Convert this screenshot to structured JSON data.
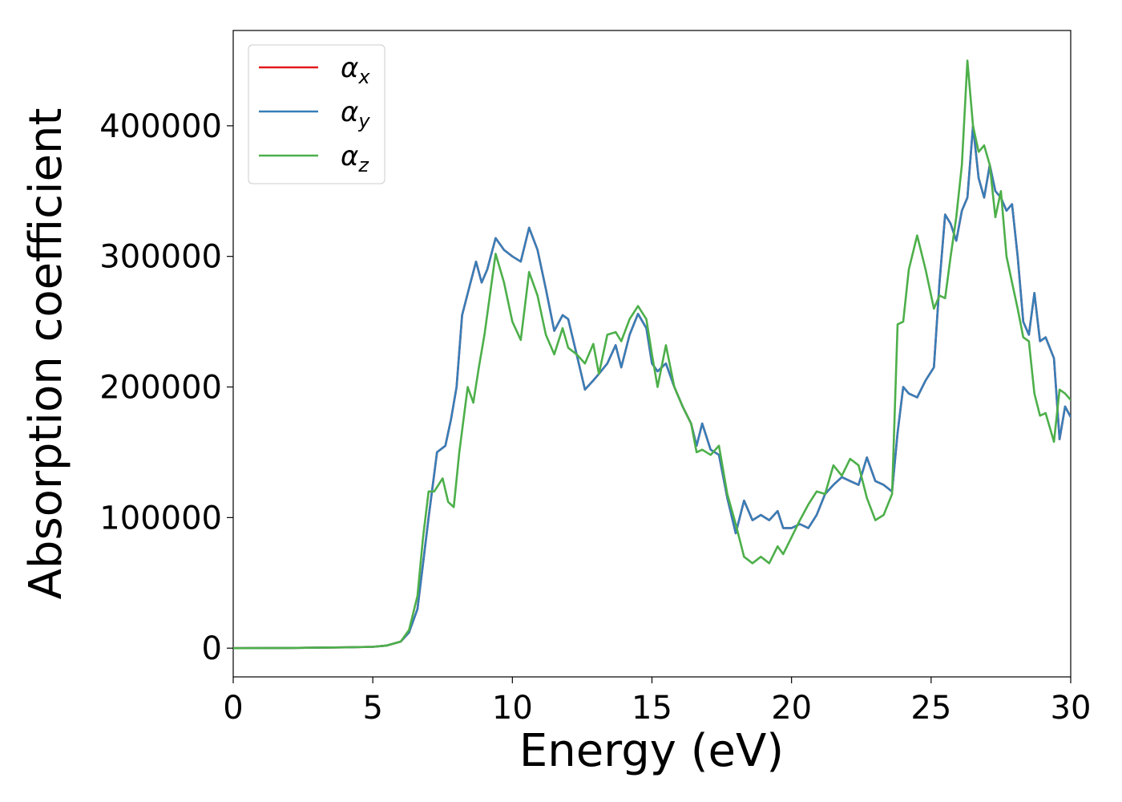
{
  "chart_data": {
    "type": "line",
    "xlabel": "Energy (eV)",
    "ylabel": "Absorption coefficient",
    "xlim": [
      0,
      30
    ],
    "ylim": [
      -22000,
      473000
    ],
    "xticks": [
      "0",
      "5",
      "10",
      "15",
      "20",
      "25",
      "30"
    ],
    "yticks": [
      "0",
      "100000",
      "200000",
      "300000",
      "400000"
    ],
    "grid": false,
    "legend_position": "top-left",
    "series": [
      {
        "name": "αx",
        "symbol": "α",
        "subscript": "x",
        "color": "#e41a1c",
        "x": [
          0,
          2,
          4,
          5,
          5.5,
          6,
          6.3,
          6.6,
          6.8,
          7.0,
          7.3,
          7.6,
          7.8,
          8.0,
          8.2,
          8.5,
          8.7,
          8.9,
          9.1,
          9.4,
          9.7,
          10.0,
          10.3,
          10.6,
          10.9,
          11.2,
          11.5,
          11.8,
          12.0,
          12.3,
          12.6,
          12.9,
          13.1,
          13.4,
          13.7,
          13.9,
          14.2,
          14.5,
          14.8,
          15.0,
          15.2,
          15.5,
          15.8,
          16.1,
          16.4,
          16.6,
          16.8,
          17.1,
          17.4,
          17.7,
          18.0,
          18.3,
          18.6,
          18.9,
          19.2,
          19.5,
          19.7,
          20.0,
          20.3,
          20.6,
          20.9,
          21.2,
          21.5,
          21.8,
          22.1,
          22.4,
          22.7,
          23.0,
          23.3,
          23.6,
          23.8,
          24.0,
          24.2,
          24.5,
          24.8,
          25.1,
          25.3,
          25.5,
          25.7,
          25.9,
          26.1,
          26.3,
          26.5,
          26.7,
          26.9,
          27.1,
          27.3,
          27.5,
          27.7,
          27.9,
          28.1,
          28.3,
          28.5,
          28.7,
          28.9,
          29.1,
          29.4,
          29.6,
          29.8,
          30.0
        ],
        "values": [
          0,
          200,
          600,
          1000,
          2000,
          5000,
          12000,
          30000,
          65000,
          100000,
          150000,
          155000,
          175000,
          200000,
          255000,
          280000,
          296000,
          280000,
          290000,
          314000,
          305000,
          300000,
          296000,
          322000,
          305000,
          275000,
          243000,
          255000,
          252000,
          225000,
          198000,
          205000,
          210000,
          218000,
          232000,
          215000,
          240000,
          256000,
          245000,
          218000,
          212000,
          218000,
          200000,
          185000,
          172000,
          155000,
          172000,
          152000,
          148000,
          115000,
          88000,
          113000,
          98000,
          102000,
          98000,
          105000,
          92000,
          92000,
          95000,
          92000,
          102000,
          118000,
          125000,
          131000,
          128000,
          125000,
          146000,
          128000,
          125000,
          120000,
          165000,
          200000,
          195000,
          192000,
          205000,
          215000,
          280000,
          332000,
          325000,
          312000,
          335000,
          345000,
          400000,
          360000,
          345000,
          370000,
          350000,
          345000,
          335000,
          340000,
          300000,
          250000,
          240000,
          272000,
          235000,
          238000,
          222000,
          160000,
          185000,
          177000
        ]
      },
      {
        "name": "αy",
        "symbol": "α",
        "subscript": "y",
        "color": "#377eb8",
        "x": [
          0,
          2,
          4,
          5,
          5.5,
          6,
          6.3,
          6.6,
          6.8,
          7.0,
          7.3,
          7.6,
          7.8,
          8.0,
          8.2,
          8.5,
          8.7,
          8.9,
          9.1,
          9.4,
          9.7,
          10.0,
          10.3,
          10.6,
          10.9,
          11.2,
          11.5,
          11.8,
          12.0,
          12.3,
          12.6,
          12.9,
          13.1,
          13.4,
          13.7,
          13.9,
          14.2,
          14.5,
          14.8,
          15.0,
          15.2,
          15.5,
          15.8,
          16.1,
          16.4,
          16.6,
          16.8,
          17.1,
          17.4,
          17.7,
          18.0,
          18.3,
          18.6,
          18.9,
          19.2,
          19.5,
          19.7,
          20.0,
          20.3,
          20.6,
          20.9,
          21.2,
          21.5,
          21.8,
          22.1,
          22.4,
          22.7,
          23.0,
          23.3,
          23.6,
          23.8,
          24.0,
          24.2,
          24.5,
          24.8,
          25.1,
          25.3,
          25.5,
          25.7,
          25.9,
          26.1,
          26.3,
          26.5,
          26.7,
          26.9,
          27.1,
          27.3,
          27.5,
          27.7,
          27.9,
          28.1,
          28.3,
          28.5,
          28.7,
          28.9,
          29.1,
          29.4,
          29.6,
          29.8,
          30.0
        ],
        "values": [
          0,
          200,
          600,
          1000,
          2000,
          5000,
          12000,
          30000,
          65000,
          100000,
          150000,
          155000,
          175000,
          200000,
          255000,
          280000,
          296000,
          280000,
          290000,
          314000,
          305000,
          300000,
          296000,
          322000,
          305000,
          275000,
          243000,
          255000,
          252000,
          225000,
          198000,
          205000,
          210000,
          218000,
          232000,
          215000,
          240000,
          256000,
          245000,
          218000,
          212000,
          218000,
          200000,
          185000,
          172000,
          155000,
          172000,
          152000,
          148000,
          115000,
          88000,
          113000,
          98000,
          102000,
          98000,
          105000,
          92000,
          92000,
          95000,
          92000,
          102000,
          118000,
          125000,
          131000,
          128000,
          125000,
          146000,
          128000,
          125000,
          120000,
          165000,
          200000,
          195000,
          192000,
          205000,
          215000,
          280000,
          332000,
          325000,
          312000,
          335000,
          345000,
          400000,
          360000,
          345000,
          370000,
          350000,
          345000,
          335000,
          340000,
          300000,
          250000,
          240000,
          272000,
          235000,
          238000,
          222000,
          160000,
          185000,
          177000
        ]
      },
      {
        "name": "αz",
        "symbol": "α",
        "subscript": "z",
        "color": "#4daf4a",
        "x": [
          0,
          2,
          4,
          5,
          5.5,
          6,
          6.3,
          6.6,
          6.8,
          7.0,
          7.2,
          7.5,
          7.7,
          7.9,
          8.1,
          8.4,
          8.6,
          8.8,
          9.0,
          9.4,
          9.7,
          10.0,
          10.3,
          10.6,
          10.9,
          11.2,
          11.5,
          11.8,
          12.0,
          12.3,
          12.6,
          12.9,
          13.1,
          13.4,
          13.7,
          13.9,
          14.2,
          14.5,
          14.8,
          15.0,
          15.2,
          15.5,
          15.8,
          16.1,
          16.4,
          16.6,
          16.8,
          17.1,
          17.4,
          17.7,
          18.0,
          18.3,
          18.6,
          18.9,
          19.2,
          19.5,
          19.7,
          20.0,
          20.3,
          20.6,
          20.9,
          21.2,
          21.5,
          21.8,
          22.1,
          22.4,
          22.7,
          23.0,
          23.3,
          23.6,
          23.8,
          24.0,
          24.2,
          24.5,
          24.8,
          25.1,
          25.3,
          25.5,
          25.7,
          25.9,
          26.1,
          26.3,
          26.5,
          26.7,
          26.9,
          27.1,
          27.3,
          27.5,
          27.7,
          27.9,
          28.1,
          28.3,
          28.5,
          28.7,
          28.9,
          29.1,
          29.4,
          29.6,
          29.8,
          30.0
        ],
        "values": [
          0,
          200,
          600,
          1000,
          2000,
          5000,
          14000,
          40000,
          85000,
          120000,
          120000,
          130000,
          112000,
          108000,
          150000,
          200000,
          188000,
          215000,
          240000,
          302000,
          280000,
          250000,
          236000,
          288000,
          270000,
          240000,
          225000,
          245000,
          230000,
          225000,
          218000,
          233000,
          210000,
          240000,
          242000,
          235000,
          252000,
          262000,
          252000,
          225000,
          200000,
          232000,
          200000,
          185000,
          172000,
          150000,
          152000,
          148000,
          155000,
          118000,
          95000,
          70000,
          65000,
          70000,
          65000,
          78000,
          72000,
          85000,
          98000,
          110000,
          120000,
          118000,
          140000,
          132000,
          145000,
          140000,
          115000,
          98000,
          102000,
          118000,
          248000,
          250000,
          290000,
          316000,
          290000,
          260000,
          270000,
          268000,
          300000,
          330000,
          370000,
          450000,
          400000,
          380000,
          385000,
          370000,
          330000,
          350000,
          300000,
          280000,
          260000,
          238000,
          235000,
          195000,
          178000,
          180000,
          158000,
          198000,
          195000,
          190000
        ]
      }
    ]
  }
}
